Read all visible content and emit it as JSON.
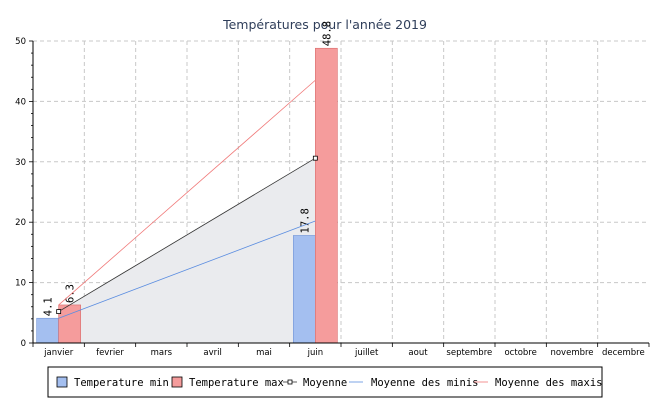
{
  "chart_data": {
    "type": "bar",
    "title": "Températures pour l'année 2019",
    "categories": [
      "janvier",
      "fevrier",
      "mars",
      "avril",
      "mai",
      "juin",
      "juillet",
      "aout",
      "septembre",
      "octobre",
      "novembre",
      "decembre"
    ],
    "ylim": [
      0,
      50
    ],
    "yticks": [
      0,
      10,
      20,
      30,
      40,
      50
    ],
    "grid": true,
    "legend_position": "bottom",
    "bars": [
      {
        "name": "Temperature min",
        "color": "#a4bff0",
        "stroke": "#6f93d6",
        "values": [
          4.1,
          null,
          null,
          null,
          null,
          17.8,
          null,
          null,
          null,
          null,
          null,
          null
        ],
        "labels": [
          "4.1",
          null,
          null,
          null,
          null,
          "17.8",
          null,
          null,
          null,
          null,
          null,
          null
        ]
      },
      {
        "name": "Temperature max",
        "color": "#f59c9c",
        "stroke": "#d86a6a",
        "values": [
          6.3,
          null,
          null,
          null,
          null,
          48.8,
          null,
          null,
          null,
          null,
          null,
          null
        ],
        "labels": [
          "6.3",
          null,
          null,
          null,
          null,
          "48.8",
          null,
          null,
          null,
          null,
          null,
          null
        ]
      }
    ],
    "lines": [
      {
        "name": "Moyenne",
        "color": "#333333",
        "marker": "square",
        "fill": "#eaebee",
        "points": [
          {
            "x": "janvier",
            "y": 5.2
          },
          {
            "x": "juin",
            "y": 30.6
          }
        ]
      },
      {
        "name": "Moyenne des minis",
        "color": "#5b8de0",
        "marker": "none",
        "points": [
          {
            "x": "janvier",
            "y": 4.1
          },
          {
            "x": "juin",
            "y": 20.2
          }
        ]
      },
      {
        "name": "Moyenne des maxis",
        "color": "#f07878",
        "marker": "none",
        "points": [
          {
            "x": "janvier",
            "y": 6.3
          },
          {
            "x": "juin",
            "y": 43.5
          }
        ]
      }
    ],
    "legend": [
      {
        "label": "Temperature min",
        "kind": "box",
        "color": "#a4bff0"
      },
      {
        "label": "Temperature max",
        "kind": "box",
        "color": "#f59c9c"
      },
      {
        "label": "Moyenne",
        "kind": "marker-line",
        "color": "#333333"
      },
      {
        "label": "Moyenne des minis",
        "kind": "line",
        "color": "#5b8de0"
      },
      {
        "label": "Moyenne des maxis",
        "kind": "line",
        "color": "#f07878"
      }
    ]
  }
}
